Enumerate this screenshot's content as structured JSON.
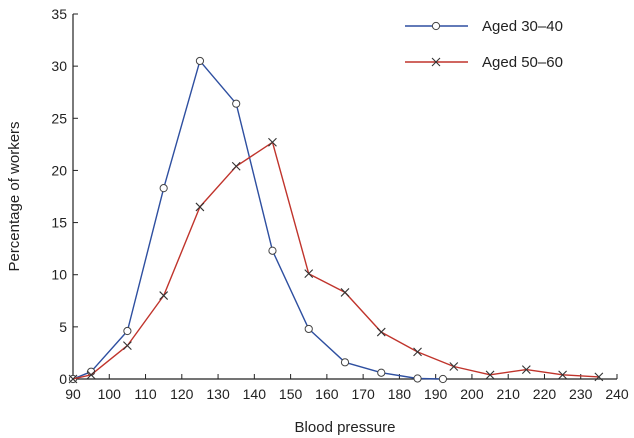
{
  "chart_data": {
    "type": "line",
    "title": "",
    "xlabel": "Blood pressure",
    "ylabel": "Percentage of workers",
    "xlim": [
      90,
      240
    ],
    "ylim": [
      0,
      35
    ],
    "xticks": [
      90,
      100,
      110,
      120,
      130,
      140,
      150,
      160,
      170,
      180,
      190,
      200,
      210,
      220,
      230,
      240
    ],
    "yticks": [
      0,
      5,
      10,
      15,
      20,
      25,
      30,
      35
    ],
    "grid": false,
    "legend_position": "top-right",
    "series": [
      {
        "name": "Aged 30–40",
        "color": "#2e4fa0",
        "marker": "circle",
        "x": [
          90,
          95,
          105,
          115,
          125,
          135,
          145,
          155,
          165,
          175,
          185,
          192
        ],
        "y": [
          0,
          0.7,
          4.6,
          18.3,
          30.5,
          26.4,
          12.3,
          4.8,
          1.6,
          0.6,
          0.05,
          0
        ]
      },
      {
        "name": "Aged 50–60",
        "color": "#c0342c",
        "marker": "x",
        "x": [
          90,
          95,
          105,
          115,
          125,
          135,
          145,
          155,
          165,
          175,
          185,
          195,
          205,
          215,
          225,
          235
        ],
        "y": [
          0,
          0.4,
          3.2,
          8.0,
          16.5,
          20.4,
          22.7,
          10.1,
          8.3,
          4.5,
          2.6,
          1.2,
          0.4,
          0.9,
          0.4,
          0.2
        ]
      }
    ]
  }
}
